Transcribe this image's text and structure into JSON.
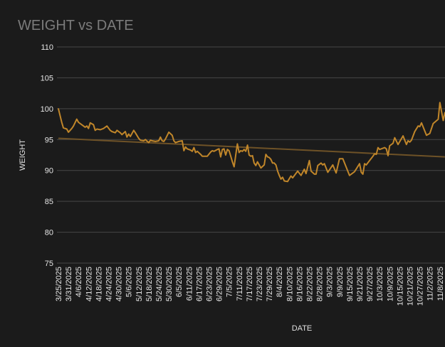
{
  "chart_data": {
    "type": "line",
    "title": "WEIGHT vs DATE",
    "xlabel": "DATE",
    "ylabel": "WEIGHT",
    "ylim": [
      75,
      110
    ],
    "yticks": [
      75,
      80,
      85,
      90,
      95,
      100,
      105,
      110
    ],
    "xticks": [
      "3/25/2025",
      "3/31/2025",
      "4/6/2025",
      "4/12/2025",
      "4/18/2025",
      "4/24/2025",
      "4/30/2025",
      "5/6/2025",
      "5/12/2025",
      "5/18/2025",
      "5/24/2025",
      "5/30/2025",
      "6/5/2025",
      "6/11/2025",
      "6/17/2025",
      "6/23/2025",
      "6/29/2025",
      "7/5/2025",
      "7/11/2025",
      "7/17/2025",
      "7/23/2025",
      "7/29/2025",
      "8/4/2025",
      "8/10/2025",
      "8/16/2025",
      "8/22/2025",
      "8/28/2025",
      "9/3/2025",
      "9/9/2025",
      "9/15/2025",
      "9/21/2025",
      "9/27/2025",
      "10/3/2025",
      "10/9/2025",
      "10/15/2025",
      "10/21/2025",
      "10/27/2025",
      "11/2/2025",
      "11/8/2025"
    ],
    "grid": true,
    "colors": {
      "series": "#c0862a",
      "trend": "#6e5227",
      "grid": "#474747",
      "background": "#1b1b1b"
    },
    "series": [
      {
        "points": [
          [
            "3/25/2025",
            100.0
          ],
          [
            "3/27/2025",
            97.8
          ],
          [
            "3/28/2025",
            96.9
          ],
          [
            "3/30/2025",
            96.7
          ],
          [
            "3/31/2025",
            96.2
          ],
          [
            "4/2/2025",
            96.8
          ],
          [
            "4/3/2025",
            97.2
          ],
          [
            "4/5/2025",
            98.3
          ],
          [
            "4/6/2025",
            97.8
          ],
          [
            "4/8/2025",
            97.4
          ],
          [
            "4/10/2025",
            97.0
          ],
          [
            "4/11/2025",
            97.2
          ],
          [
            "4/12/2025",
            96.8
          ],
          [
            "4/13/2025",
            97.7
          ],
          [
            "4/15/2025",
            97.4
          ],
          [
            "4/16/2025",
            96.5
          ],
          [
            "4/17/2025",
            96.7
          ],
          [
            "4/19/2025",
            96.6
          ],
          [
            "4/21/2025",
            96.8
          ],
          [
            "4/23/2025",
            97.2
          ],
          [
            "4/25/2025",
            96.5
          ],
          [
            "4/26/2025",
            96.3
          ],
          [
            "4/28/2025",
            96.1
          ],
          [
            "4/29/2025",
            96.5
          ],
          [
            "5/1/2025",
            96.1
          ],
          [
            "5/2/2025",
            95.8
          ],
          [
            "5/4/2025",
            96.3
          ],
          [
            "5/5/2025",
            95.4
          ],
          [
            "5/6/2025",
            95.9
          ],
          [
            "5/7/2025",
            95.5
          ],
          [
            "5/9/2025",
            96.5
          ],
          [
            "5/10/2025",
            96.1
          ],
          [
            "5/12/2025",
            95.2
          ],
          [
            "5/13/2025",
            94.9
          ],
          [
            "5/15/2025",
            94.8
          ],
          [
            "5/16/2025",
            95.0
          ],
          [
            "5/18/2025",
            94.5
          ],
          [
            "5/19/2025",
            94.9
          ],
          [
            "5/20/2025",
            94.8
          ],
          [
            "5/22/2025",
            94.7
          ],
          [
            "5/24/2025",
            94.8
          ],
          [
            "5/25/2025",
            95.4
          ],
          [
            "5/26/2025",
            94.8
          ],
          [
            "5/27/2025",
            94.7
          ],
          [
            "5/28/2025",
            95.1
          ],
          [
            "5/30/2025",
            96.2
          ],
          [
            "6/1/2025",
            95.7
          ],
          [
            "6/2/2025",
            94.8
          ],
          [
            "6/3/2025",
            94.5
          ],
          [
            "6/5/2025",
            94.7
          ],
          [
            "6/7/2025",
            94.8
          ],
          [
            "6/8/2025",
            93.2
          ],
          [
            "6/9/2025",
            93.8
          ],
          [
            "6/10/2025",
            93.5
          ],
          [
            "6/12/2025",
            93.3
          ],
          [
            "6/13/2025",
            93.1
          ],
          [
            "6/14/2025",
            93.7
          ],
          [
            "6/15/2025",
            92.9
          ],
          [
            "6/16/2025",
            93.1
          ],
          [
            "6/18/2025",
            92.6
          ],
          [
            "6/19/2025",
            92.3
          ],
          [
            "6/21/2025",
            92.3
          ],
          [
            "6/22/2025",
            92.3
          ],
          [
            "6/24/2025",
            93.0
          ],
          [
            "6/25/2025",
            93.2
          ],
          [
            "6/26/2025",
            93.1
          ],
          [
            "6/28/2025",
            93.4
          ],
          [
            "6/29/2025",
            93.5
          ],
          [
            "6/30/2025",
            92.2
          ],
          [
            "7/1/2025",
            93.4
          ],
          [
            "7/2/2025",
            93.5
          ],
          [
            "7/3/2025",
            92.5
          ],
          [
            "7/4/2025",
            93.4
          ],
          [
            "7/5/2025",
            93.2
          ],
          [
            "7/6/2025",
            92.3
          ],
          [
            "7/7/2025",
            91.4
          ],
          [
            "7/8/2025",
            90.6
          ],
          [
            "7/9/2025",
            92.5
          ],
          [
            "7/10/2025",
            94.3
          ],
          [
            "7/11/2025",
            92.9
          ],
          [
            "7/12/2025",
            93.2
          ],
          [
            "7/13/2025",
            93.1
          ],
          [
            "7/14/2025",
            93.4
          ],
          [
            "7/15/2025",
            93.1
          ],
          [
            "7/16/2025",
            94.1
          ],
          [
            "7/17/2025",
            92.5
          ],
          [
            "7/18/2025",
            92.3
          ],
          [
            "7/19/2025",
            92.4
          ],
          [
            "7/20/2025",
            91.2
          ],
          [
            "7/21/2025",
            90.8
          ],
          [
            "7/22/2025",
            91.4
          ],
          [
            "7/23/2025",
            90.9
          ],
          [
            "7/24/2025",
            90.4
          ],
          [
            "7/26/2025",
            90.9
          ],
          [
            "7/27/2025",
            92.6
          ],
          [
            "7/28/2025",
            92.2
          ],
          [
            "7/29/2025",
            92.1
          ],
          [
            "7/30/2025",
            91.8
          ],
          [
            "7/31/2025",
            91.2
          ],
          [
            "8/1/2025",
            91.2
          ],
          [
            "8/2/2025",
            90.9
          ],
          [
            "8/3/2025",
            89.9
          ],
          [
            "8/4/2025",
            89.2
          ],
          [
            "8/5/2025",
            88.6
          ],
          [
            "8/6/2025",
            88.9
          ],
          [
            "8/7/2025",
            88.3
          ],
          [
            "8/9/2025",
            88.2
          ],
          [
            "8/11/2025",
            89.1
          ],
          [
            "8/12/2025",
            88.8
          ],
          [
            "8/15/2025",
            89.9
          ],
          [
            "8/17/2025",
            89.2
          ],
          [
            "8/19/2025",
            90.2
          ],
          [
            "8/20/2025",
            89.5
          ],
          [
            "8/22/2025",
            91.6
          ],
          [
            "8/23/2025",
            89.9
          ],
          [
            "8/25/2025",
            89.4
          ],
          [
            "8/26/2025",
            89.4
          ],
          [
            "8/27/2025",
            90.8
          ],
          [
            "8/29/2025",
            91.2
          ],
          [
            "8/30/2025",
            90.9
          ],
          [
            "8/31/2025",
            91.1
          ],
          [
            "9/2/2025",
            89.7
          ],
          [
            "9/5/2025",
            90.9
          ],
          [
            "9/7/2025",
            89.6
          ],
          [
            "9/9/2025",
            91.9
          ],
          [
            "9/11/2025",
            91.9
          ],
          [
            "9/15/2025",
            89.2
          ],
          [
            "9/18/2025",
            89.8
          ],
          [
            "9/21/2025",
            91.1
          ],
          [
            "9/22/2025",
            89.7
          ],
          [
            "9/23/2025",
            89.4
          ],
          [
            "9/24/2025",
            91.1
          ],
          [
            "9/25/2025",
            90.9
          ],
          [
            "9/29/2025",
            92.3
          ],
          [
            "9/30/2025",
            92.7
          ],
          [
            "10/1/2025",
            92.6
          ],
          [
            "10/2/2025",
            93.7
          ],
          [
            "10/3/2025",
            93.4
          ],
          [
            "10/6/2025",
            93.7
          ],
          [
            "10/7/2025",
            93.5
          ],
          [
            "10/8/2025",
            92.4
          ],
          [
            "10/9/2025",
            94.0
          ],
          [
            "10/11/2025",
            94.4
          ],
          [
            "10/12/2025",
            95.3
          ],
          [
            "10/14/2025",
            94.2
          ],
          [
            "10/17/2025",
            95.6
          ],
          [
            "10/19/2025",
            94.2
          ],
          [
            "10/20/2025",
            94.8
          ],
          [
            "10/21/2025",
            94.6
          ],
          [
            "10/22/2025",
            94.9
          ],
          [
            "10/24/2025",
            96.3
          ],
          [
            "10/26/2025",
            97.2
          ],
          [
            "10/27/2025",
            97.1
          ],
          [
            "10/28/2025",
            97.7
          ],
          [
            "10/31/2025",
            95.7
          ],
          [
            "11/2/2025",
            96.0
          ],
          [
            "11/4/2025",
            97.6
          ],
          [
            "11/7/2025",
            98.3
          ],
          [
            "11/8/2025",
            101.0
          ],
          [
            "11/10/2025",
            98.1
          ],
          [
            "11/11/2025",
            99.4
          ]
        ]
      }
    ],
    "trendline": {
      "points": [
        [
          "3/25/2025",
          95.2
        ],
        [
          "11/11/2025",
          92.2
        ]
      ]
    }
  }
}
